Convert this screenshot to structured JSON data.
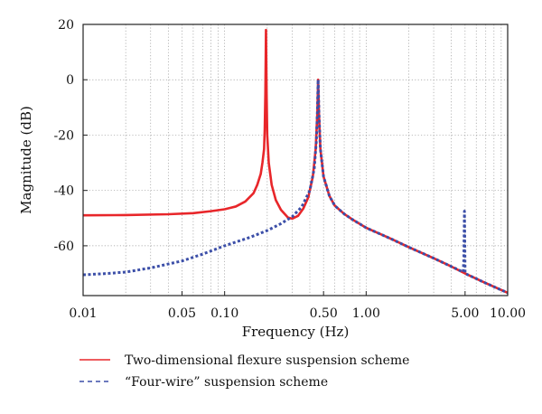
{
  "chart_data": {
    "type": "line",
    "xscale": "log",
    "xlim": [
      0.01,
      10
    ],
    "ylim": [
      -78,
      20
    ],
    "xlabel": "Frequency (Hz)",
    "ylabel": "Magnitude (dB)",
    "grid": true,
    "legend_position": "bottom",
    "x_ticks": [
      {
        "value": 0.01,
        "label": "0.01"
      },
      {
        "value": 0.05,
        "label": "0.05"
      },
      {
        "value": 0.1,
        "label": "0.10"
      },
      {
        "value": 0.5,
        "label": "0.50"
      },
      {
        "value": 1,
        "label": "1.00"
      },
      {
        "value": 5,
        "label": "5.00"
      },
      {
        "value": 10,
        "label": "10.00"
      }
    ],
    "y_ticks": [
      {
        "value": 20,
        "label": "20"
      },
      {
        "value": 0,
        "label": "0"
      },
      {
        "value": -20,
        "label": "-20"
      },
      {
        "value": -40,
        "label": "-40"
      },
      {
        "value": -60,
        "label": "-60"
      }
    ],
    "series": [
      {
        "name": "Two-dimensional flexure suspension scheme",
        "color": "#e8262a",
        "style": "solid",
        "points": [
          [
            0.01,
            -49
          ],
          [
            0.02,
            -48.9
          ],
          [
            0.04,
            -48.6
          ],
          [
            0.06,
            -48.2
          ],
          [
            0.08,
            -47.5
          ],
          [
            0.1,
            -46.8
          ],
          [
            0.12,
            -45.8
          ],
          [
            0.14,
            -44
          ],
          [
            0.16,
            -41
          ],
          [
            0.17,
            -38
          ],
          [
            0.18,
            -34
          ],
          [
            0.185,
            -30
          ],
          [
            0.19,
            -25
          ],
          [
            0.192,
            -18
          ],
          [
            0.194,
            -5
          ],
          [
            0.196,
            18
          ],
          [
            0.198,
            -5
          ],
          [
            0.2,
            -20
          ],
          [
            0.205,
            -30
          ],
          [
            0.215,
            -38
          ],
          [
            0.23,
            -43.5
          ],
          [
            0.25,
            -47
          ],
          [
            0.28,
            -49.8
          ],
          [
            0.3,
            -50.2
          ],
          [
            0.33,
            -49.2
          ],
          [
            0.36,
            -46.5
          ],
          [
            0.39,
            -42.5
          ],
          [
            0.42,
            -35
          ],
          [
            0.44,
            -25
          ],
          [
            0.452,
            -12
          ],
          [
            0.458,
            0
          ],
          [
            0.464,
            -12
          ],
          [
            0.475,
            -25
          ],
          [
            0.5,
            -35
          ],
          [
            0.55,
            -42
          ],
          [
            0.6,
            -45.5
          ],
          [
            0.7,
            -48.5
          ],
          [
            0.8,
            -50.5
          ],
          [
            1.0,
            -53.5
          ],
          [
            1.5,
            -57.5
          ],
          [
            2,
            -60.5
          ],
          [
            3,
            -64.5
          ],
          [
            4,
            -67.5
          ],
          [
            5,
            -70
          ],
          [
            7,
            -73.5
          ],
          [
            10,
            -77
          ]
        ]
      },
      {
        "name": "“Four-wire” suspension scheme",
        "color": "#3c4fa8",
        "style": "dashed",
        "points": [
          [
            0.01,
            -70.5
          ],
          [
            0.015,
            -70
          ],
          [
            0.02,
            -69.5
          ],
          [
            0.03,
            -68
          ],
          [
            0.05,
            -65.5
          ],
          [
            0.07,
            -63
          ],
          [
            0.1,
            -60
          ],
          [
            0.15,
            -57
          ],
          [
            0.2,
            -54.5
          ],
          [
            0.25,
            -52
          ],
          [
            0.3,
            -49.5
          ],
          [
            0.35,
            -46
          ],
          [
            0.4,
            -40
          ],
          [
            0.43,
            -32
          ],
          [
            0.445,
            -22
          ],
          [
            0.452,
            -12
          ],
          [
            0.458,
            0
          ],
          [
            0.464,
            -12
          ],
          [
            0.475,
            -25
          ],
          [
            0.5,
            -35
          ],
          [
            0.55,
            -42
          ],
          [
            0.6,
            -45.5
          ],
          [
            0.7,
            -48.5
          ],
          [
            0.8,
            -50.5
          ],
          [
            1.0,
            -53.5
          ],
          [
            1.5,
            -57.5
          ],
          [
            2,
            -60.5
          ],
          [
            3,
            -64.5
          ],
          [
            4,
            -67.5
          ],
          [
            4.85,
            -69.5
          ],
          [
            4.9,
            -65
          ],
          [
            4.93,
            -55
          ],
          [
            4.95,
            -47.5
          ],
          [
            4.97,
            -55
          ],
          [
            5,
            -70
          ],
          [
            7,
            -73.5
          ],
          [
            10,
            -77
          ]
        ]
      }
    ]
  }
}
